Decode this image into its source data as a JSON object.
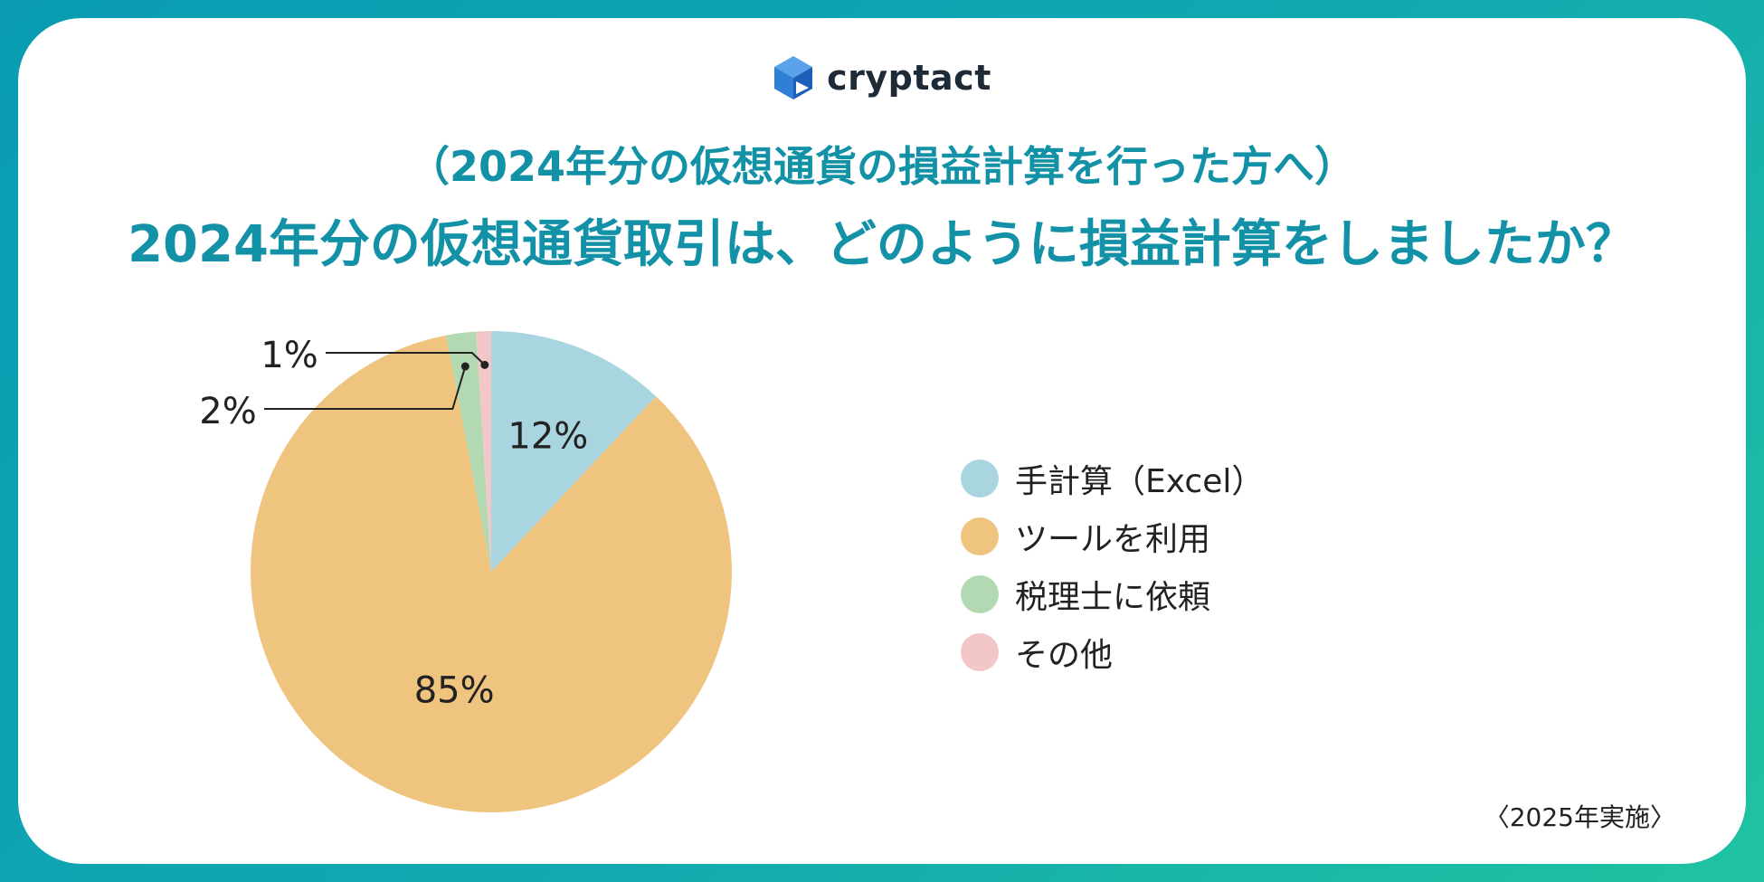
{
  "brand": {
    "name": "cryptact"
  },
  "header": {
    "subtitle": "（2024年分の仮想通貨の損益計算を行った方へ）",
    "title": "2024年分の仮想通貨取引は、どのように損益計算をしましたか？"
  },
  "footer": {
    "note": "〈2025年実施〉"
  },
  "colors": {
    "accent": "#1392a7",
    "excel": "#a8d5df",
    "tool": "#efc47f",
    "tax": "#b2d9b2",
    "other": "#f3c6c8"
  },
  "chart_data": {
    "type": "pie",
    "series": [
      {
        "name": "手計算（Excel）",
        "value": 12,
        "label": "12%",
        "color": "#a8d5df"
      },
      {
        "name": "ツールを利用",
        "value": 85,
        "label": "85%",
        "color": "#efc47f"
      },
      {
        "name": "税理士に依頼",
        "value": 2,
        "label": "2%",
        "color": "#b2d9b2"
      },
      {
        "name": "その他",
        "value": 1,
        "label": "1%",
        "color": "#f3c6c8"
      }
    ],
    "legend_position": "right"
  }
}
